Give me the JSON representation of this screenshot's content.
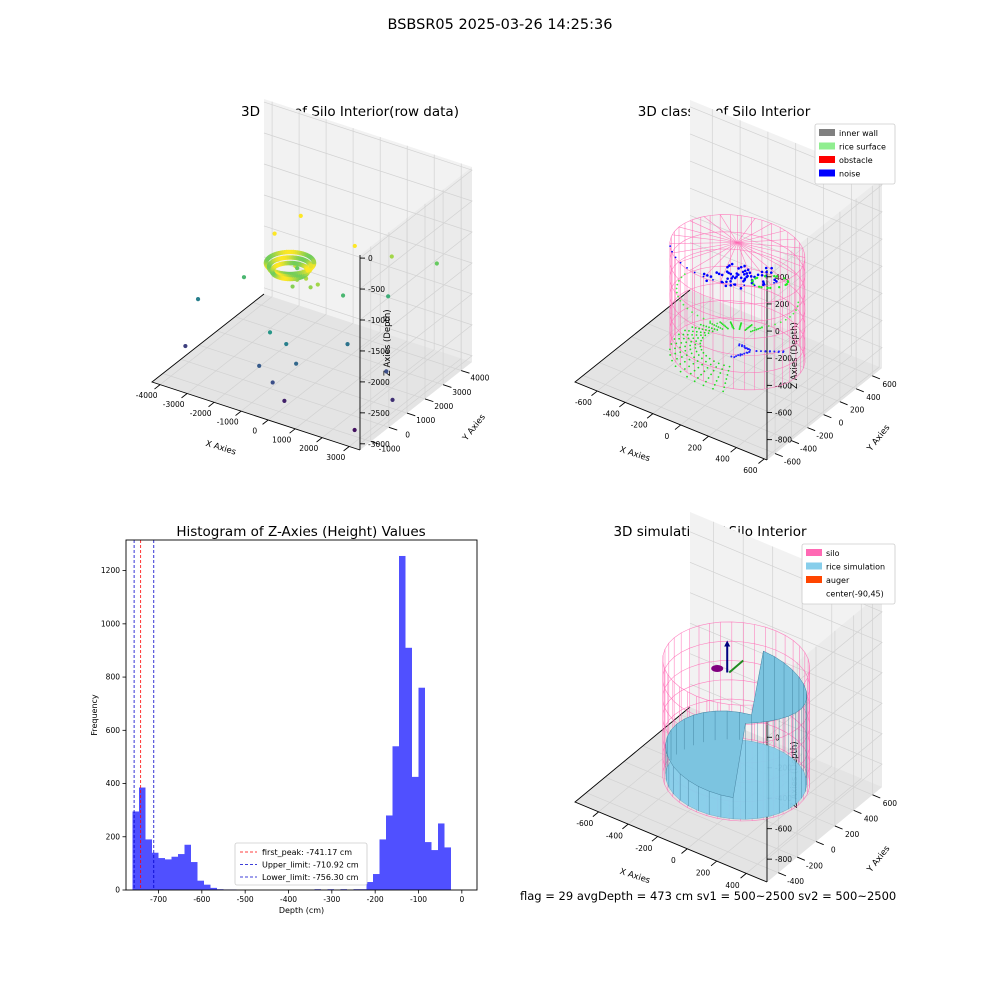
{
  "figure_title": "BSBSR05 2025-03-26 14:25:36",
  "status_line": "flag = 29  avgDepth = 473 cm  sv1 = 500~2500  sv2 = 500~2500",
  "chart_data": [
    {
      "type": "scatter",
      "title": "3D Plot of Silo Interior(row data)",
      "xlabel": "X Axies",
      "ylabel": "Y Axies",
      "zlabel": "Z Axies (Depth)",
      "x_ticks": [
        -4000,
        -3000,
        -2000,
        -1000,
        0,
        1000,
        2000,
        3000
      ],
      "y_ticks": [
        -1000,
        0,
        1000,
        2000,
        3000,
        4000
      ],
      "z_ticks": [
        -3000,
        -2500,
        -2000,
        -1500,
        -1000,
        -500,
        0
      ],
      "xlim": [
        -4300,
        3400
      ],
      "ylim": [
        -1600,
        4600
      ],
      "zlim": [
        -3100,
        50
      ],
      "colormap": "viridis",
      "points": [
        {
          "x": -200,
          "y": 300,
          "z": -1300
        },
        {
          "x": -100,
          "y": 400,
          "z": -1200
        },
        {
          "x": 100,
          "y": 350,
          "z": -1250
        },
        {
          "x": 0,
          "y": 500,
          "z": -1100
        },
        {
          "x": 300,
          "y": 300,
          "z": -1350
        },
        {
          "x": -300,
          "y": 200,
          "z": -1400
        },
        {
          "x": 200,
          "y": 600,
          "z": -1000
        },
        {
          "x": -400,
          "y": 500,
          "z": -1150
        },
        {
          "x": 500,
          "y": 400,
          "z": -1300
        },
        {
          "x": -1500,
          "y": 1000,
          "z": -900
        },
        {
          "x": -1200,
          "y": 2000,
          "z": -800
        },
        {
          "x": 800,
          "y": 2000,
          "z": -1000
        },
        {
          "x": 1500,
          "y": 3000,
          "z": -1300
        },
        {
          "x": 2500,
          "y": 4000,
          "z": -1500
        },
        {
          "x": -2500,
          "y": 800,
          "z": -1700
        },
        {
          "x": -200,
          "y": -300,
          "z": -2200
        },
        {
          "x": 300,
          "y": -500,
          "z": -2400
        },
        {
          "x": -600,
          "y": -600,
          "z": -2000
        },
        {
          "x": 1200,
          "y": 1000,
          "z": -2300
        },
        {
          "x": -3800,
          "y": -500,
          "z": -2700
        },
        {
          "x": -4000,
          "y": 500,
          "z": -2200
        },
        {
          "x": 2500,
          "y": 1200,
          "z": -2600
        },
        {
          "x": 3200,
          "y": 500,
          "z": -2800
        },
        {
          "x": 200,
          "y": -1000,
          "z": -2900
        },
        {
          "x": -800,
          "y": -900,
          "z": -2500
        },
        {
          "x": 2800,
          "y": -1000,
          "z": -3000
        },
        {
          "x": -100,
          "y": -1200,
          "z": -2600
        },
        {
          "x": 700,
          "y": 1500,
          "z": -1700
        },
        {
          "x": -1000,
          "y": 1500,
          "z": -1500
        },
        {
          "x": 1700,
          "y": 2500,
          "z": -1800
        }
      ]
    },
    {
      "type": "scatter",
      "title": "3D classify of Silo Interior",
      "xlabel": "X Axies",
      "ylabel": "Y Axies",
      "zlabel": "Z Axies (Depth)",
      "x_ticks": [
        -600,
        -400,
        -200,
        0,
        200,
        400,
        600
      ],
      "y_ticks": [
        -600,
        -400,
        -200,
        0,
        200,
        400,
        600
      ],
      "z_ticks": [
        -800,
        -600,
        -400,
        -200,
        0,
        200,
        400
      ],
      "xlim": [
        -760,
        620
      ],
      "ylim": [
        -700,
        720
      ],
      "zlim": [
        -950,
        450
      ],
      "legend_position": "upper-right",
      "legend": [
        {
          "label": "inner wall",
          "color": "#808080"
        },
        {
          "label": "rice surface",
          "color": "#90ee90"
        },
        {
          "label": "obstacle",
          "color": "#ff0000"
        },
        {
          "label": "noise",
          "color": "#0000ff"
        }
      ],
      "silo_radius": 420,
      "silo_z_top": 0,
      "silo_z_bottom": -760
    },
    {
      "type": "bar",
      "title": "Histogram of Z-Axies (Height) Values",
      "xlabel": "Depth (cm)",
      "ylabel": "Frequency",
      "x_ticks": [
        -700,
        -600,
        -500,
        -400,
        -300,
        -200,
        -100,
        0
      ],
      "y_ticks": [
        0,
        200,
        400,
        600,
        800,
        1000,
        1200
      ],
      "xlim": [
        -775,
        35
      ],
      "ylim": [
        0,
        1315
      ],
      "bar_color": "#5050ff",
      "bin_start": -760,
      "bin_width": 15,
      "counts": [
        295,
        385,
        190,
        140,
        120,
        115,
        125,
        135,
        170,
        105,
        35,
        20,
        8,
        3,
        2,
        2,
        0,
        0,
        0,
        0,
        0,
        0,
        0,
        0,
        0,
        0,
        0,
        0,
        3,
        0,
        3,
        0,
        3,
        0,
        3,
        3,
        30,
        60,
        190,
        280,
        540,
        1255,
        910,
        425,
        760,
        180,
        150,
        250,
        160
      ],
      "legend_position": "lower-center",
      "vlines": [
        {
          "label": "first_peak: -741.17 cm",
          "x": -741.17,
          "color": "#ff0000"
        },
        {
          "label": "Upper_limit: -710.92 cm",
          "x": -710.92,
          "color": "#0000cc"
        },
        {
          "label": "Lower_limit: -756.30 cm",
          "x": -756.3,
          "color": "#0000cc"
        }
      ]
    },
    {
      "type": "surface",
      "title": "3D simulation of Silo Interior",
      "xlabel": "X Axies",
      "ylabel": "Y Axies",
      "zlabel": "Z Axies (Depth)",
      "x_ticks": [
        -600,
        -400,
        -200,
        0,
        200,
        400
      ],
      "y_ticks": [
        -400,
        -200,
        0,
        200,
        400,
        600
      ],
      "z_ticks": [
        -800,
        -600,
        -400,
        -200,
        0,
        200
      ],
      "xlim": [
        -760,
        540
      ],
      "ylim": [
        -520,
        700
      ],
      "zlim": [
        -950,
        330
      ],
      "legend_position": "upper-right",
      "legend": [
        {
          "label": "silo",
          "color": "#ff69b4"
        },
        {
          "label": "rice simulation",
          "color": "#87ceeb"
        },
        {
          "label": "auger",
          "color": "#ff4500"
        },
        {
          "label": "center(-90,45)",
          "color": "#ffffff"
        }
      ],
      "silo_radius": 420,
      "silo_z_top": 0,
      "silo_z_bottom": -760
    }
  ]
}
